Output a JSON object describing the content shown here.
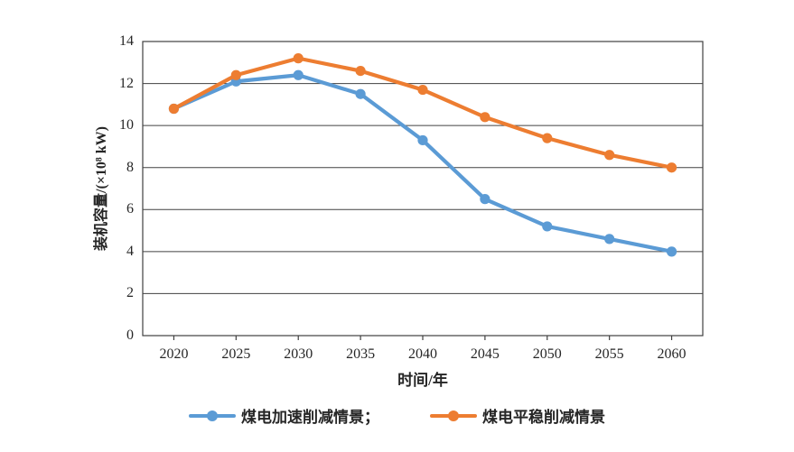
{
  "chart_data": {
    "type": "line",
    "title": "",
    "xlabel": "时间/年",
    "ylabel": "装机容量/(×10⁸ kW)",
    "x_categories": [
      "2020",
      "2025",
      "2030",
      "2035",
      "2040",
      "2045",
      "2050",
      "2055",
      "2060"
    ],
    "y_ticks": [
      0,
      2,
      4,
      6,
      8,
      10,
      12,
      14
    ],
    "ylim": [
      0,
      14
    ],
    "grid": "horizontal",
    "legend_position": "bottom",
    "axis_color": "#404040",
    "text_color": "#262626",
    "background_color": "#ffffff",
    "series": [
      {
        "name": "煤电加速削减情景",
        "legend_label": "煤电加速削减情景；",
        "color": "#5B9BD5",
        "values": [
          10.8,
          12.1,
          12.4,
          11.5,
          9.3,
          6.5,
          5.2,
          4.6,
          4.0
        ]
      },
      {
        "name": "煤电平稳削减情景",
        "legend_label": "煤电平稳削减情景",
        "color": "#ED7D31",
        "values": [
          10.8,
          12.4,
          13.2,
          12.6,
          11.7,
          10.4,
          9.4,
          8.6,
          8.0
        ]
      }
    ]
  }
}
